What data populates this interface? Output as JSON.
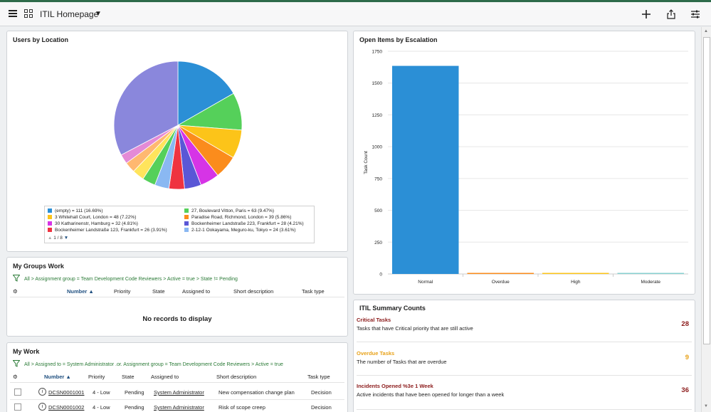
{
  "header": {
    "title": "ITIL Homepage",
    "caret": "▼"
  },
  "users_by_location": {
    "title": "Users by Location",
    "pager": "1 / 8",
    "legend": [
      {
        "label": "(empty) = 111 (16.69%)",
        "color": "#2b8fd6"
      },
      {
        "label": "27, Boulevard Vitton, Paris = 63 (9.47%)",
        "color": "#55d05a"
      },
      {
        "label": "3 Whitehall Court, London = 48 (7.22%)",
        "color": "#fcc419"
      },
      {
        "label": "Paradise Road, Richmond, London = 39 (5.86%)",
        "color": "#fb8c1c"
      },
      {
        "label": "30 Katharinenstr, Hamburg = 32 (4.81%)",
        "color": "#d634e6"
      },
      {
        "label": "Bockenheimer Landstraße 223, Frankfurt = 28 (4.21%)",
        "color": "#5a57d6"
      },
      {
        "label": "Bockenheimer Landstraße 123, Frankfurt = 26 (3.91%)",
        "color": "#ef3340"
      },
      {
        "label": "2-12-1 Ookayama, Meguro-ku, Tokyo = 24 (3.61%)",
        "color": "#8ab8f2"
      }
    ]
  },
  "chart_data": {
    "type": "pie",
    "title": "Users by Location",
    "slices": [
      {
        "label": "(empty)",
        "value": 111,
        "percent": 16.69,
        "color": "#2b8fd6"
      },
      {
        "label": "27, Boulevard Vitton, Paris",
        "value": 63,
        "percent": 9.47,
        "color": "#55d05a"
      },
      {
        "label": "3 Whitehall Court, London",
        "value": 48,
        "percent": 7.22,
        "color": "#fcc419"
      },
      {
        "label": "Paradise Road, Richmond, London",
        "value": 39,
        "percent": 5.86,
        "color": "#fb8c1c"
      },
      {
        "label": "30 Katharinenstr, Hamburg",
        "value": 32,
        "percent": 4.81,
        "color": "#d634e6"
      },
      {
        "label": "Bockenheimer Landstraße 223, Frankfurt",
        "value": 28,
        "percent": 4.21,
        "color": "#5a57d6"
      },
      {
        "label": "Bockenheimer Landstraße 123, Frankfurt",
        "value": 26,
        "percent": 3.91,
        "color": "#ef3340"
      },
      {
        "label": "2-12-1 Ookayama, Meguro-ku, Tokyo",
        "value": 24,
        "percent": 3.61,
        "color": "#8ab8f2"
      },
      {
        "label": "",
        "value": 22,
        "color": "#55d05a"
      },
      {
        "label": "",
        "value": 20,
        "color": "#ffe45c"
      },
      {
        "label": "",
        "value": 18,
        "color": "#ffb870"
      },
      {
        "label": "",
        "value": 16,
        "color": "#e48ad6"
      },
      {
        "label": "",
        "value": 217,
        "color": "#8a87dc"
      }
    ]
  },
  "open_items": {
    "title": "Open Items by Escalation",
    "ylabel": "Task Count",
    "yticks": [
      "0",
      "250",
      "500",
      "750",
      "1000",
      "1250",
      "1500",
      "1750"
    ],
    "chart_data": {
      "type": "bar",
      "categories": [
        "Normal",
        "Overdue",
        "High",
        "Moderate"
      ],
      "values": [
        1635,
        8,
        2,
        2
      ],
      "colors": [
        "#2b8fd6",
        "#fb8c1c",
        "#fcc419",
        "#88d0d0"
      ],
      "ylabel": "Task Count",
      "ylim": [
        0,
        1750
      ]
    }
  },
  "my_groups": {
    "title": "My Groups Work",
    "breadcrumb": "All > Assignment group = Team Development Code Reviewers > Active = true > State != Pending",
    "columns": [
      "Number ▲",
      "Priority",
      "State",
      "Assigned to",
      "Short description",
      "Task type"
    ],
    "empty": "No records to display"
  },
  "my_work": {
    "title": "My Work",
    "breadcrumb": "All > Assigned to = System Administrator .or. Assignment group = Team Development Code Reviewers > Active = true",
    "columns": [
      "Number ▲",
      "Priority",
      "State",
      "Assigned to",
      "Short description",
      "Task type"
    ],
    "rows": [
      {
        "number": "DCSN0001001",
        "priority": "4 - Low",
        "state": "Pending",
        "assigned": "System Administrator",
        "desc": "New compensation change plan",
        "type": "Decision"
      },
      {
        "number": "DCSN0001002",
        "priority": "4 - Low",
        "state": "Pending",
        "assigned": "System Administrator",
        "desc": "Risk of scope creep",
        "type": "Decision"
      }
    ]
  },
  "summary": {
    "title": "ITIL Summary Counts",
    "items": [
      {
        "title": "Critical Tasks",
        "desc": "Tasks that have Critical priority that are still active",
        "count": "28",
        "color": "#8b1a1a"
      },
      {
        "title": "Overdue Tasks",
        "desc": "The number of Tasks that are overdue",
        "count": "9",
        "color": "#e8a21a"
      },
      {
        "title": "Incidents Opened %3e 1 Week",
        "desc": "Active incidents that have been opened for longer than a week",
        "count": "36",
        "color": "#8b1a1a"
      }
    ]
  }
}
